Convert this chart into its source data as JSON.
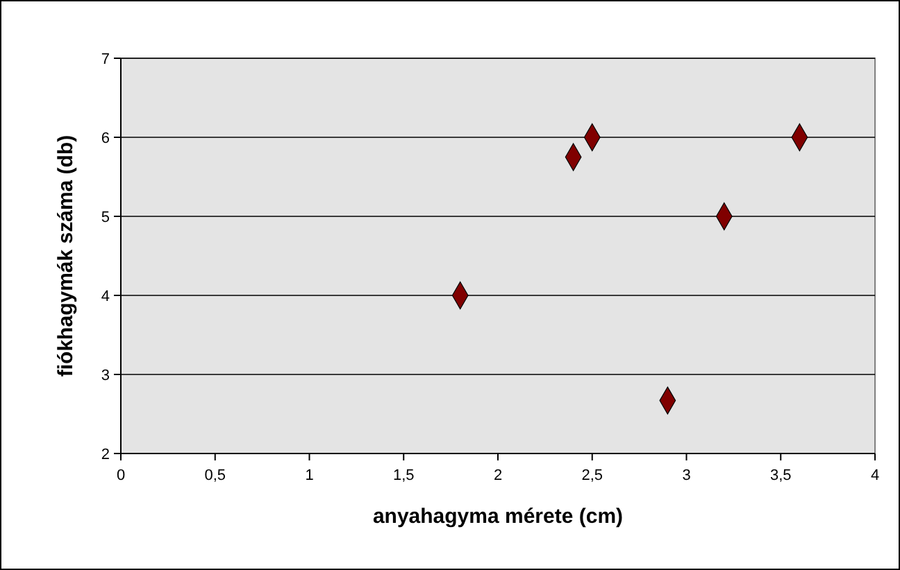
{
  "chart_data": {
    "type": "scatter",
    "xlabel": "anyahagyma mérete (cm)",
    "ylabel": "fiókhagymák száma (db)",
    "x": [
      1.8,
      2.4,
      2.5,
      2.9,
      3.2,
      3.6
    ],
    "series": [
      {
        "color": "#800000",
        "values": [
          4,
          5.75,
          6,
          2.67,
          5,
          6
        ]
      }
    ],
    "xlim": [
      0,
      4
    ],
    "xticks": [
      0,
      {
        "value": 0.5,
        "label": "0,5"
      },
      1,
      {
        "value": 1.5,
        "label": "1,5"
      },
      2,
      {
        "value": 2.5,
        "label": "2,5"
      },
      3,
      {
        "value": 3.5,
        "label": "3,5"
      },
      4
    ],
    "ylim": [
      2,
      7
    ],
    "yticks": [
      2,
      3,
      4,
      5,
      6,
      7
    ],
    "grid": "y",
    "marker": "diamond"
  }
}
